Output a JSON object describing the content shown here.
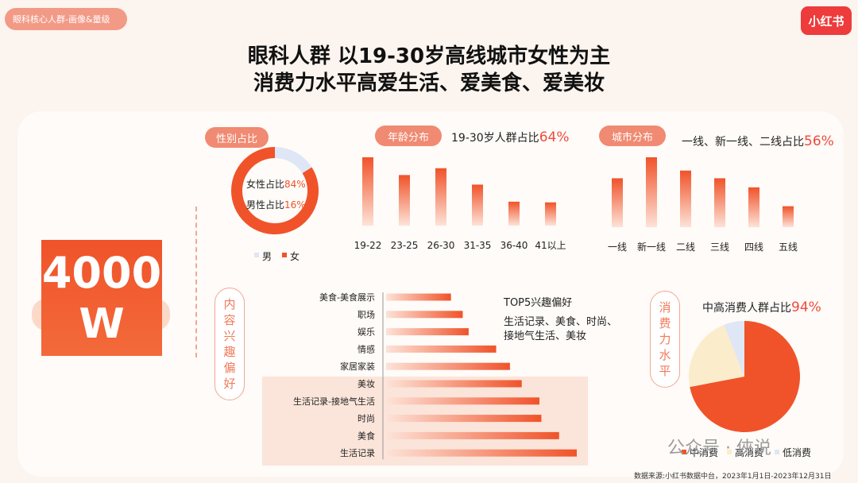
{
  "header": {
    "tag": "眼科核心人群-画像&量级",
    "logo": "小红书",
    "title_line1": "眼科人群 以19-30岁高线城市女性为主",
    "title_line2": "消费力水平高爱生活、爱美食、爱美妆"
  },
  "big_number": {
    "line1": "4000",
    "line2": "W"
  },
  "colors": {
    "primary": "#f0532a",
    "bar_light": "#fbd6c6",
    "cream": "#fbeccb",
    "light_blue": "#dfe6f5"
  },
  "chart_data": [
    {
      "type": "pie",
      "id": "gender",
      "title": "性别占比",
      "labels": [
        "男",
        "女"
      ],
      "values": [
        16,
        84
      ],
      "annotations": [
        "女性占比",
        "84%",
        "男性占比",
        "16%"
      ],
      "colors": [
        "#dfe6f5",
        "#f0532a"
      ]
    },
    {
      "type": "bar",
      "id": "age",
      "title": "年龄分布",
      "stat_prefix": "19-30岁人群占比",
      "stat_value": "64%",
      "categories": [
        "19-22",
        "23-25",
        "26-30",
        "31-35",
        "36-40",
        "41以上"
      ],
      "values": [
        100,
        74,
        84,
        60,
        35,
        34
      ]
    },
    {
      "type": "bar",
      "id": "city",
      "title": "城市分布",
      "stat_prefix": "一线、新一线、二线占比",
      "stat_value": "56%",
      "categories": [
        "一线",
        "新一线",
        "二线",
        "三线",
        "四线",
        "五线"
      ],
      "values": [
        70,
        100,
        81,
        70,
        57,
        30
      ]
    },
    {
      "type": "bar",
      "id": "interest",
      "orientation": "horizontal",
      "title": "内容兴趣偏好",
      "note_title": "TOP5兴趣偏好",
      "note_line1": "生活记录、美食、时尚、",
      "note_line2": "接地气生活、美妆",
      "categories": [
        "美食-美食展示",
        "职场",
        "娱乐",
        "情感",
        "家居家装",
        "美妆",
        "生活记录-接地气生活",
        "时尚",
        "美食",
        "生活记录"
      ],
      "values": [
        33,
        39,
        42,
        56,
        63,
        69,
        78,
        79,
        88,
        97
      ]
    },
    {
      "type": "pie",
      "id": "consumption",
      "title": "消费力水平",
      "stat_prefix": "中高消费人群占比",
      "stat_value": "94%",
      "labels": [
        "中消费",
        "高消费",
        "低消费"
      ],
      "values": [
        72,
        22,
        6
      ],
      "colors": [
        "#f0532a",
        "#fbeccb",
        "#dfe6f5"
      ]
    }
  ],
  "watermark": "公众号 · 俠说",
  "source": "数据来源:小红书数据中台，2023年1月1日-2023年12月31日"
}
